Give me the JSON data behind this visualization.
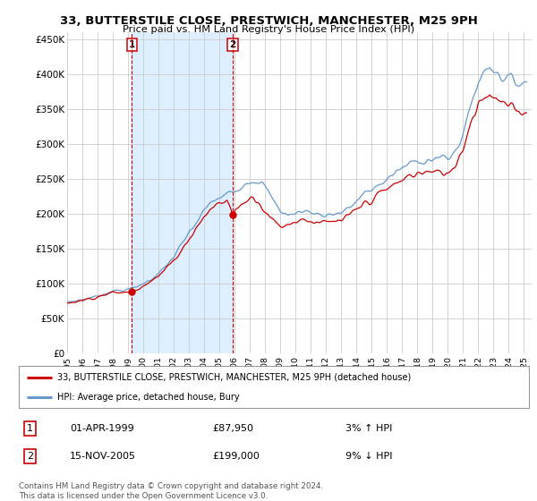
{
  "title": "33, BUTTERSTILE CLOSE, PRESTWICH, MANCHESTER, M25 9PH",
  "subtitle": "Price paid vs. HM Land Registry's House Price Index (HPI)",
  "ylabel_ticks": [
    "£0",
    "£50K",
    "£100K",
    "£150K",
    "£200K",
    "£250K",
    "£300K",
    "£350K",
    "£400K",
    "£450K"
  ],
  "ytick_values": [
    0,
    50000,
    100000,
    150000,
    200000,
    250000,
    300000,
    350000,
    400000,
    450000
  ],
  "ylim": [
    0,
    460000
  ],
  "xlim_start": 1995.0,
  "xlim_end": 2025.5,
  "price_paid_color": "#cc0000",
  "hpi_color": "#6699cc",
  "shade_color": "#ddeeff",
  "marker_x_1": 1999.25,
  "marker_y_1": 87950,
  "marker_x_2": 2005.88,
  "marker_y_2": 199000,
  "legend_line1": "33, BUTTERSTILE CLOSE, PRESTWICH, MANCHESTER, M25 9PH (detached house)",
  "legend_line2": "HPI: Average price, detached house, Bury",
  "marker_date_1": "01-APR-1999",
  "marker_price_1": "£87,950",
  "marker_pct_1": "3% ↑ HPI",
  "marker_date_2": "15-NOV-2005",
  "marker_price_2": "£199,000",
  "marker_pct_2": "9% ↓ HPI",
  "footnote": "Contains HM Land Registry data © Crown copyright and database right 2024.\nThis data is licensed under the Open Government Licence v3.0.",
  "xtick_years": [
    1995,
    1996,
    1997,
    1998,
    1999,
    2000,
    2001,
    2002,
    2003,
    2004,
    2005,
    2006,
    2007,
    2008,
    2009,
    2010,
    2011,
    2012,
    2013,
    2014,
    2015,
    2016,
    2017,
    2018,
    2019,
    2020,
    2021,
    2022,
    2023,
    2024,
    2025
  ],
  "background_color": "#ffffff",
  "grid_color": "#cccccc"
}
